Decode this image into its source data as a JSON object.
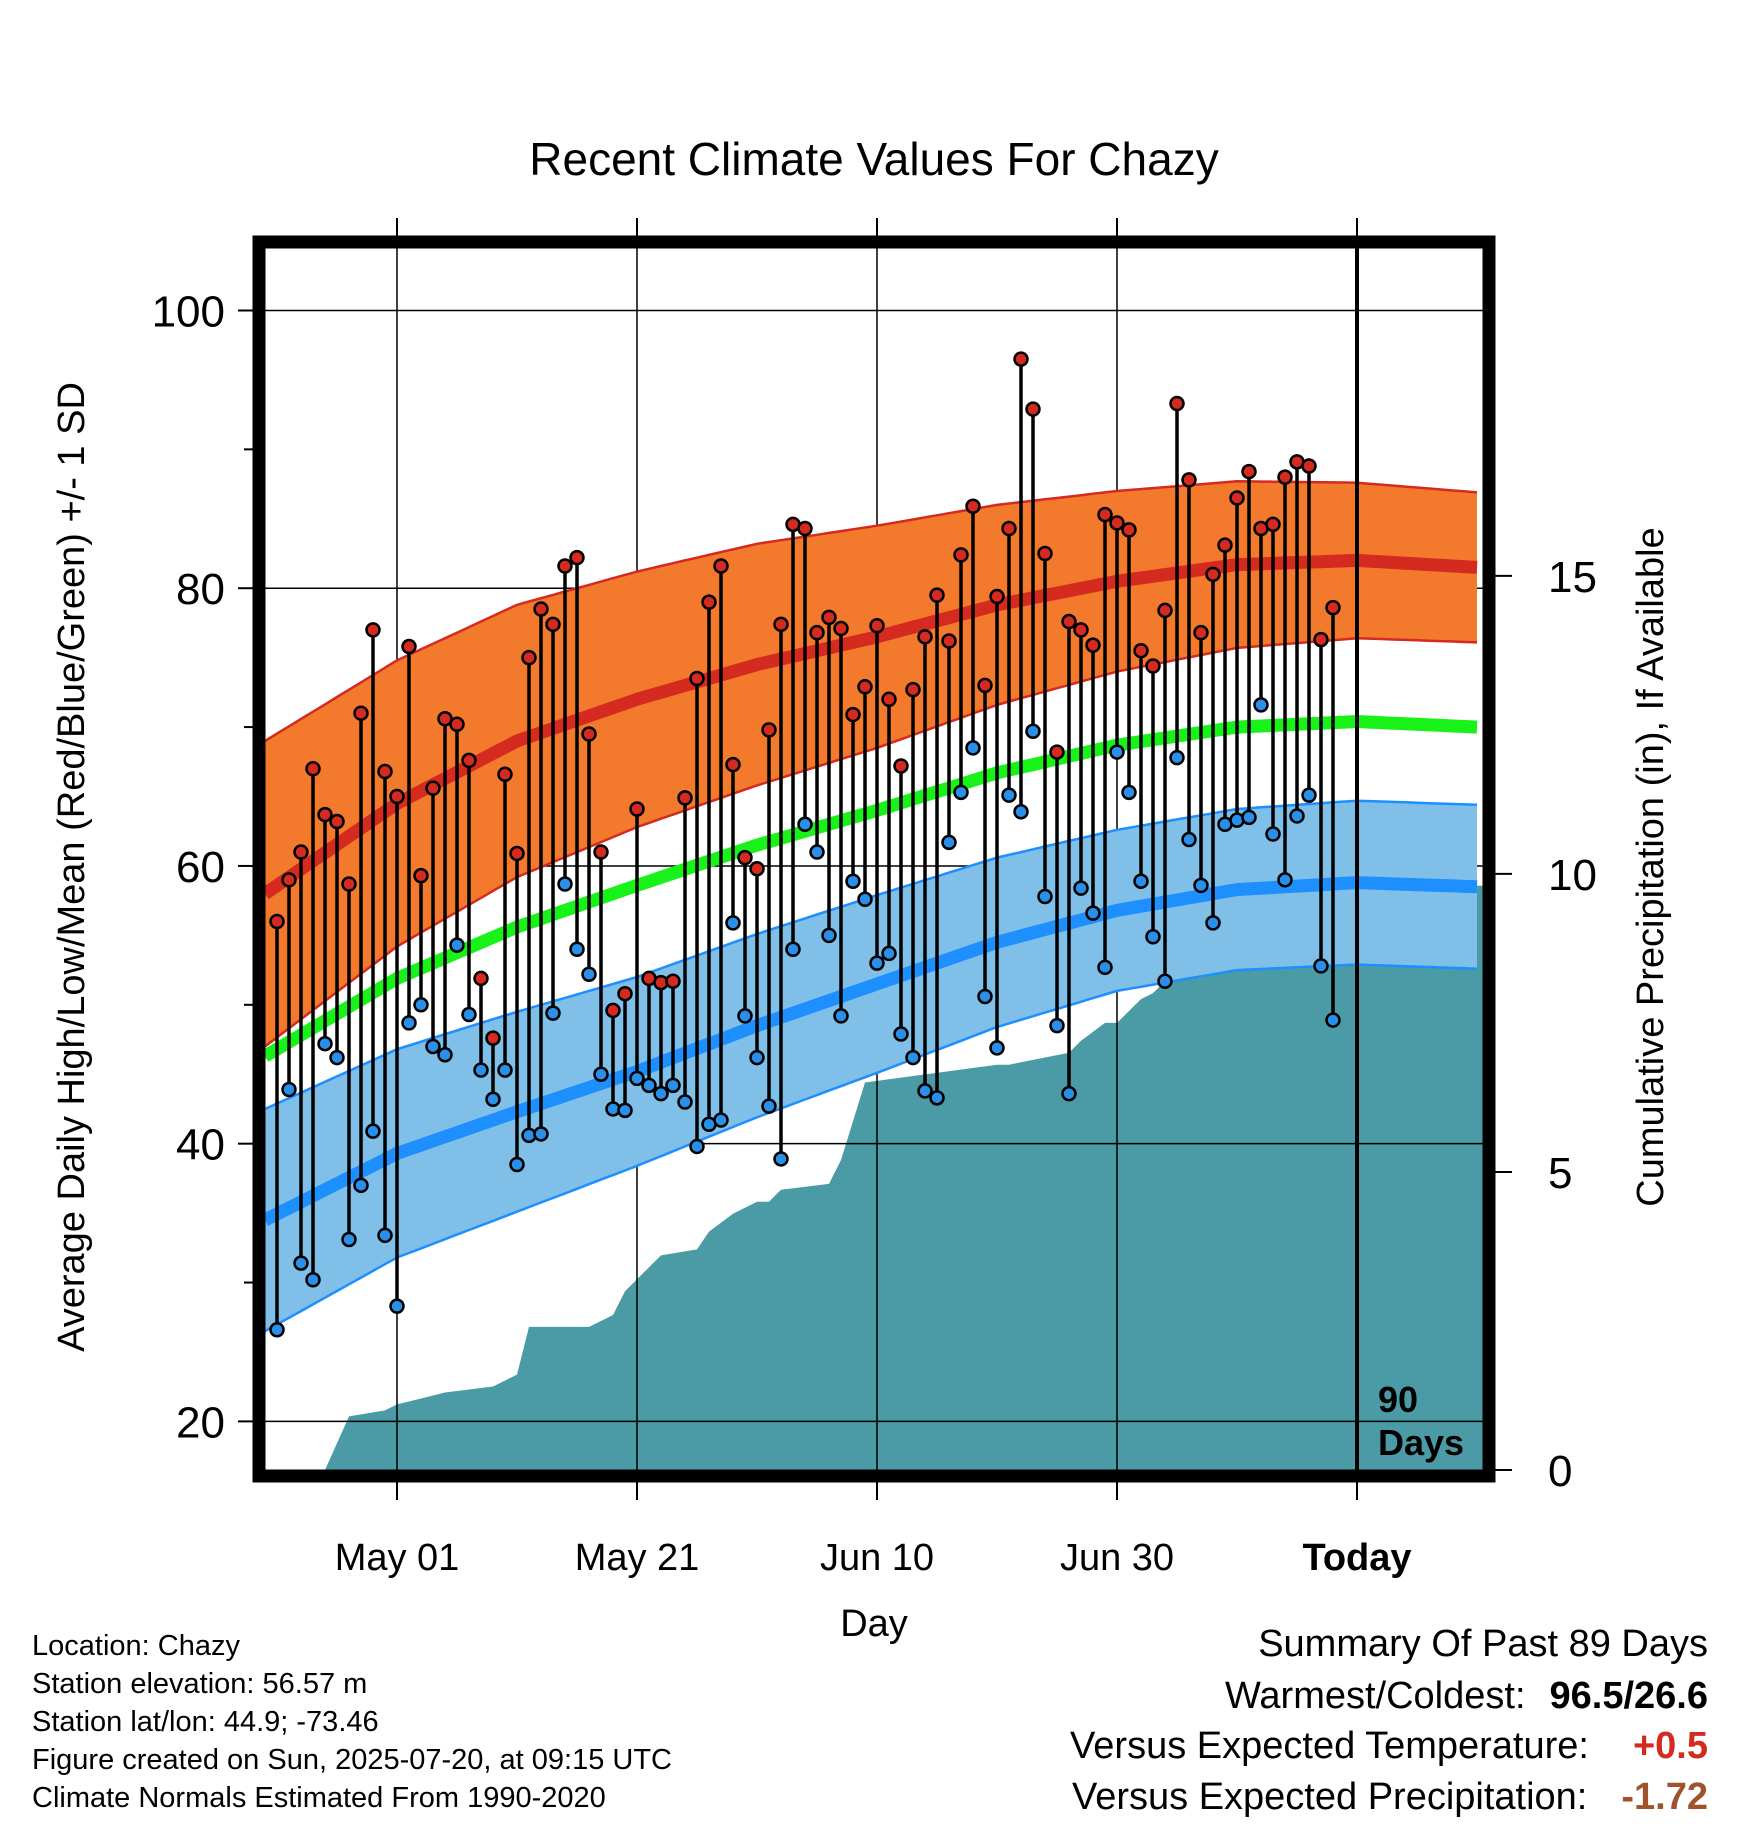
{
  "chart_data": {
    "type": "line",
    "title": "Recent Climate Values For Chazy",
    "xlabel": "Day",
    "ylabel": "Average Daily High/Low/Mean (Red/Blue/Green) +/- 1 SD",
    "y2label": "Cumulative Precipitation (in), If Available",
    "ylim": [
      16.5,
      104.5
    ],
    "y2lim": [
      0,
      20.5
    ],
    "xlim": [
      -11,
      90.5
    ],
    "x_ticks": [
      {
        "day": 0,
        "label": "May 01"
      },
      {
        "day": 20,
        "label": "May 21"
      },
      {
        "day": 40,
        "label": "Jun 10"
      },
      {
        "day": 60,
        "label": "Jun 30"
      },
      {
        "day": 80,
        "label": "Today"
      }
    ],
    "y_ticks": [
      20,
      40,
      60,
      80,
      100
    ],
    "y2_ticks": [
      0,
      5,
      10,
      15
    ],
    "annotation": [
      "90",
      "Days"
    ],
    "grid": true,
    "colors": {
      "high": "#d42a20",
      "high_band": "#f37a2c",
      "low": "#1e8fff",
      "low_band": "#7fbfe8",
      "mean": "#18f218",
      "precip": "#4a9ba5",
      "high_dot": "#d42a20",
      "low_dot": "#2a8fe8"
    },
    "normals": {
      "days": [
        -11,
        0,
        10,
        20,
        30,
        40,
        50,
        60,
        70,
        80,
        90
      ],
      "high": [
        58,
        64.5,
        69,
        72,
        74.5,
        76.5,
        78.8,
        80.5,
        81.7,
        82,
        81.5
      ],
      "high_sd": [
        11,
        10.3,
        9.8,
        9.2,
        8.7,
        8,
        7.2,
        6.5,
        6,
        5.6,
        5.4
      ],
      "low": [
        34.5,
        39.3,
        42.3,
        45.2,
        48.5,
        51.5,
        54.5,
        56.8,
        58.3,
        58.8,
        58.5
      ],
      "low_sd": [
        8,
        7.5,
        7.2,
        6.8,
        6.6,
        6.4,
        6.1,
        5.8,
        5.8,
        5.9,
        5.9
      ],
      "mean": [
        46.3,
        51.9,
        55.6,
        58.6,
        61.5,
        64,
        66.7,
        68.7,
        70,
        70.4,
        70
      ]
    },
    "daily_high": [
      56,
      59,
      61,
      67,
      63.7,
      63.2,
      58.7,
      71,
      77,
      66.8,
      65,
      75.8,
      59.3,
      65.6,
      70.6,
      70.2,
      67.6,
      51.9,
      47.6,
      66.6,
      60.9,
      75,
      78.5,
      77.4,
      81.6,
      82.2,
      69.5,
      61,
      49.6,
      50.8,
      64.1,
      51.9,
      51.6,
      51.7,
      64.9,
      73.5,
      79,
      81.6,
      67.3,
      60.6,
      59.8,
      69.8,
      77.4,
      84.6,
      84.3,
      76.8,
      77.9,
      77.1,
      70.9,
      72.9,
      77.3,
      72,
      67.2,
      72.7,
      76.5,
      79.5,
      76.2,
      82.4,
      85.9,
      73,
      79.4,
      84.3,
      96.5,
      92.9,
      82.5,
      68.2,
      77.6,
      77,
      75.9,
      85.3,
      84.7,
      84.2,
      75.5,
      74.4,
      78.4,
      93.3,
      87.8,
      76.8,
      81,
      83.1,
      86.5,
      88.4,
      84.3,
      84.6,
      88,
      89.1,
      88.8,
      76.3,
      78.6
    ],
    "daily_low": [
      26.6,
      43.9,
      31.4,
      30.2,
      47.2,
      46.2,
      33.1,
      37,
      40.9,
      33.4,
      28.3,
      48.7,
      50,
      47,
      46.4,
      54.3,
      49.3,
      45.3,
      43.2,
      45.3,
      38.5,
      40.6,
      40.7,
      49.4,
      58.7,
      54,
      52.2,
      45,
      42.5,
      42.4,
      44.7,
      44.2,
      43.6,
      44.2,
      43,
      39.8,
      41.4,
      41.7,
      55.9,
      49.2,
      46.2,
      42.7,
      38.9,
      54,
      63,
      61,
      55,
      49.2,
      58.9,
      57.6,
      53,
      53.7,
      47.9,
      46.2,
      43.8,
      43.3,
      61.7,
      65.3,
      68.5,
      50.6,
      46.9,
      65.1,
      63.9,
      69.7,
      57.8,
      48.5,
      43.6,
      58.4,
      56.6,
      52.7,
      68.2,
      65.3,
      58.9,
      54.9,
      51.7,
      67.8,
      61.9,
      58.6,
      55.9,
      63,
      63.3,
      63.5,
      71.6,
      62.3,
      59,
      63.6,
      65.1,
      52.8,
      48.9
    ],
    "cumulative_precip": {
      "days": [
        -6,
        -4,
        -1,
        0,
        2,
        4,
        8,
        10,
        11,
        16,
        17,
        18,
        19,
        22,
        25,
        26,
        28,
        30,
        31,
        32,
        36,
        37,
        39,
        50,
        51,
        56,
        57,
        59,
        60,
        62,
        63,
        64,
        65,
        67,
        69,
        71,
        72,
        73,
        74,
        75,
        76,
        78,
        80,
        90.5
      ],
      "values": [
        0,
        0.9,
        1,
        1.1,
        1.2,
        1.3,
        1.4,
        1.6,
        2.4,
        2.4,
        2.5,
        2.6,
        3,
        3.6,
        3.7,
        4,
        4.3,
        4.5,
        4.5,
        4.7,
        4.8,
        5.2,
        6.5,
        6.8,
        6.8,
        7,
        7.2,
        7.5,
        7.5,
        7.9,
        8,
        8.2,
        8.4,
        8.5,
        8.6,
        8.7,
        9,
        9.1,
        9.2,
        9.4,
        9.5,
        9.7,
        9.8,
        9.8
      ]
    }
  },
  "info": {
    "location": "Location: Chazy",
    "elevation": "Station elevation: 56.57 m",
    "latlon": "Station lat/lon: 44.9; -73.46",
    "created": "Figure created on Sun, 2025-07-20, at 09:15 UTC",
    "normals": "Climate Normals Estimated From 1990-2020"
  },
  "summary": {
    "heading": "Summary Of Past 89 Days",
    "warmest_label": "Warmest/Coldest:",
    "warmest_value": "96.5/26.6",
    "temp_label": "Versus Expected Temperature:",
    "temp_value": "+0.5",
    "temp_color": "#d42a20",
    "precip_label": "Versus Expected Precipitation:",
    "precip_value": "-1.72",
    "precip_color": "#a0522d"
  }
}
